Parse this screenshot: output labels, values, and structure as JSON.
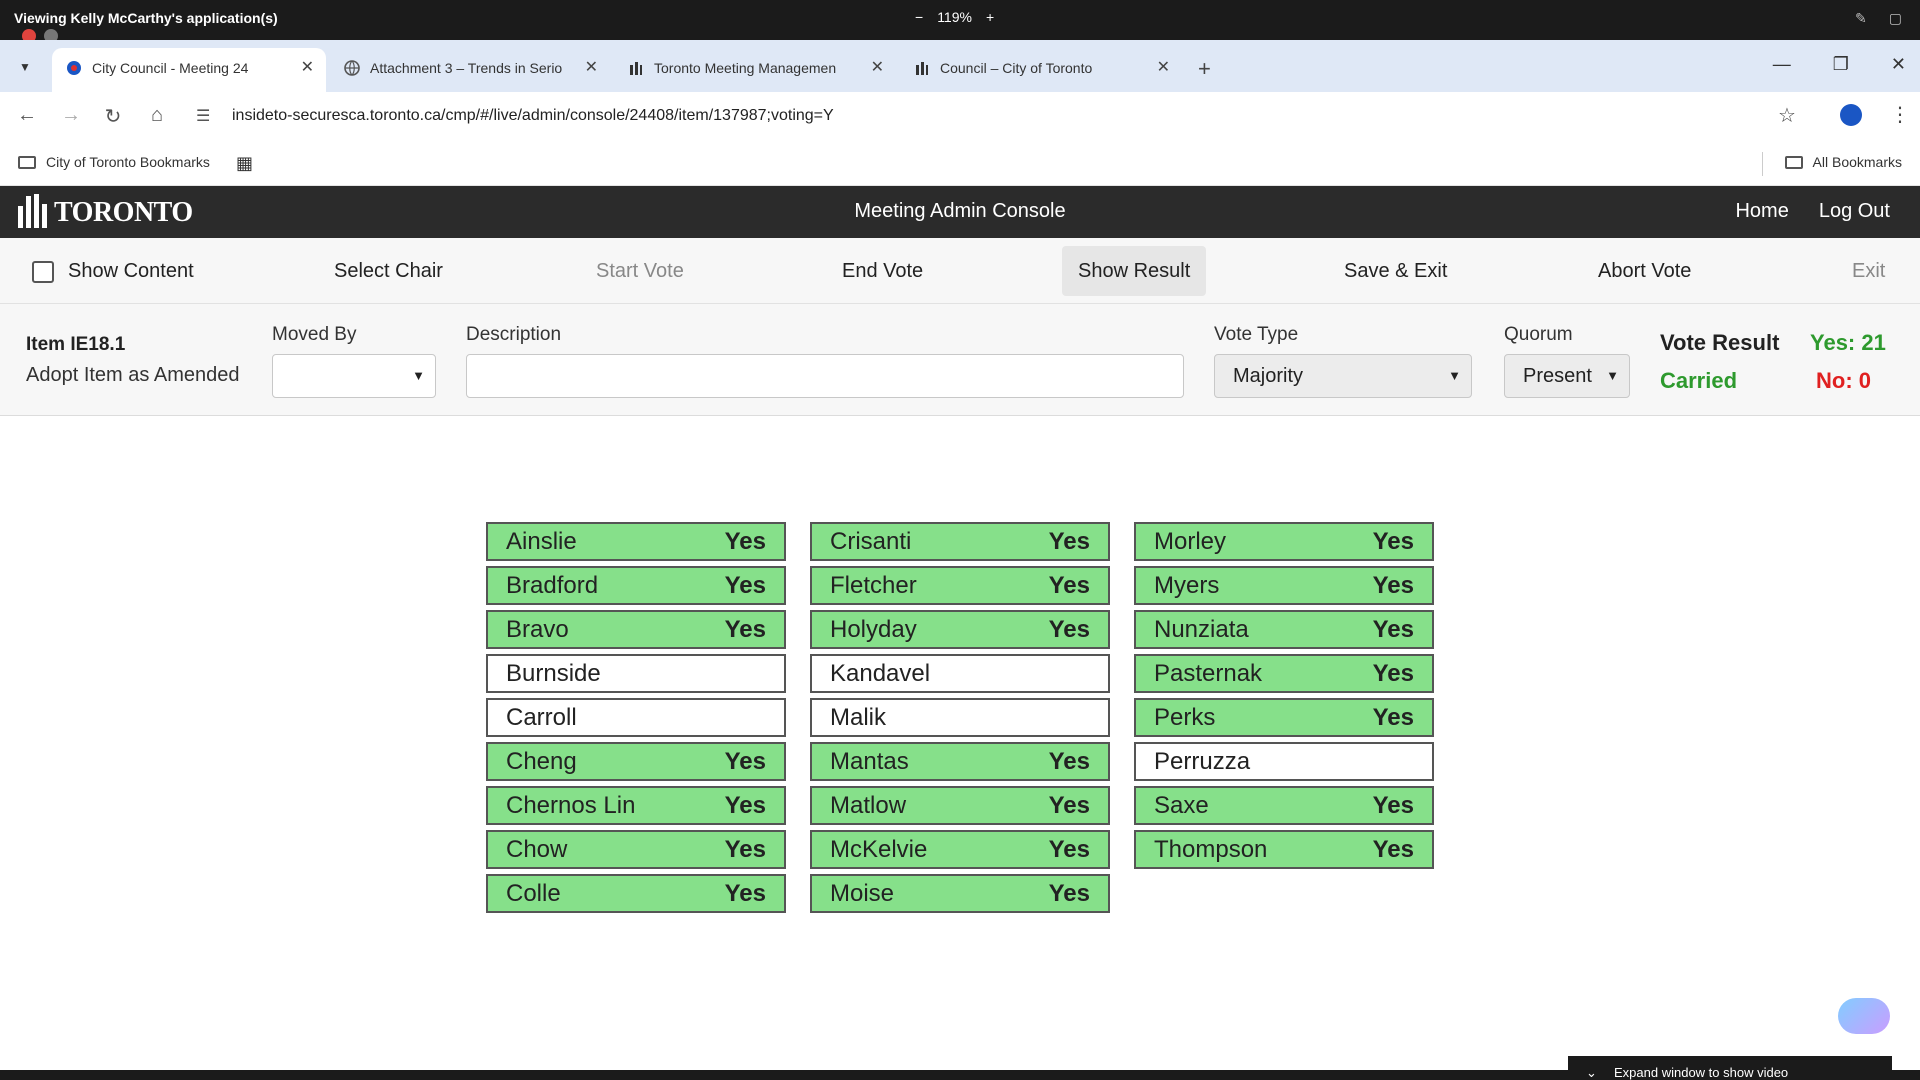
{
  "viewer": {
    "title": "Viewing Kelly McCarthy's application(s)",
    "zoom_minus": "−",
    "zoom_level": "119%",
    "zoom_plus": "+"
  },
  "browser": {
    "tabs": [
      {
        "label": "City Council - Meeting 24",
        "active": true
      },
      {
        "label": "Attachment 3 – Trends in Serio",
        "active": false
      },
      {
        "label": "Toronto Meeting Managemen",
        "active": false
      },
      {
        "label": "Council – City of Toronto",
        "active": false
      }
    ],
    "url": "insideto-securesca.toronto.ca/cmp/#/live/admin/console/24408/item/137987;voting=Y",
    "bookmarks_left": "City of Toronto Bookmarks",
    "bookmarks_right": "All Bookmarks"
  },
  "app": {
    "logo_text": "TORONTO",
    "title": "Meeting Admin Console",
    "home": "Home",
    "logout": "Log Out"
  },
  "commands": {
    "show_content": "Show Content",
    "select_chair": "Select Chair",
    "start_vote": "Start Vote",
    "end_vote": "End Vote",
    "show_result": "Show Result",
    "save_exit": "Save & Exit",
    "abort_vote": "Abort Vote",
    "exit": "Exit"
  },
  "item": {
    "id": "Item IE18.1",
    "title": "Adopt Item as Amended",
    "moved_by_label": "Moved By",
    "moved_by_value": "",
    "description_label": "Description",
    "description_value": "",
    "vote_type_label": "Vote Type",
    "vote_type_value": "Majority",
    "quorum_label": "Quorum",
    "quorum_value": "Present",
    "vote_result_label": "Vote Result",
    "vote_result_status": "Carried",
    "yes_count": "Yes: 21",
    "no_count": "No: 0"
  },
  "members": [
    [
      {
        "name": "Ainslie",
        "vote": "Yes"
      },
      {
        "name": "Bradford",
        "vote": "Yes"
      },
      {
        "name": "Bravo",
        "vote": "Yes"
      },
      {
        "name": "Burnside",
        "vote": ""
      },
      {
        "name": "Carroll",
        "vote": ""
      },
      {
        "name": "Cheng",
        "vote": "Yes"
      },
      {
        "name": "Chernos Lin",
        "vote": "Yes"
      },
      {
        "name": "Chow",
        "vote": "Yes"
      },
      {
        "name": "Colle",
        "vote": "Yes"
      }
    ],
    [
      {
        "name": "Crisanti",
        "vote": "Yes"
      },
      {
        "name": "Fletcher",
        "vote": "Yes"
      },
      {
        "name": "Holyday",
        "vote": "Yes"
      },
      {
        "name": "Kandavel",
        "vote": ""
      },
      {
        "name": "Malik",
        "vote": ""
      },
      {
        "name": "Mantas",
        "vote": "Yes"
      },
      {
        "name": "Matlow",
        "vote": "Yes"
      },
      {
        "name": "McKelvie",
        "vote": "Yes"
      },
      {
        "name": "Moise",
        "vote": "Yes"
      }
    ],
    [
      {
        "name": "Morley",
        "vote": "Yes"
      },
      {
        "name": "Myers",
        "vote": "Yes"
      },
      {
        "name": "Nunziata",
        "vote": "Yes"
      },
      {
        "name": "Pasternak",
        "vote": "Yes"
      },
      {
        "name": "Perks",
        "vote": "Yes"
      },
      {
        "name": "Perruzza",
        "vote": ""
      },
      {
        "name": "Saxe",
        "vote": "Yes"
      },
      {
        "name": "Thompson",
        "vote": "Yes"
      }
    ]
  ],
  "footer": {
    "expand_video": "Expand window to show video"
  },
  "colors": {
    "yes_bg": "#86e08a",
    "carried": "#2e9a2e",
    "no_count": "#e02020",
    "header_bg": "#2b2b2b"
  }
}
